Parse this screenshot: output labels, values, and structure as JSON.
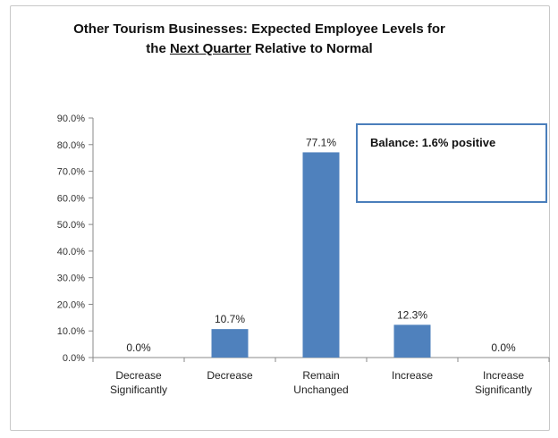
{
  "title": {
    "line1": "Other Tourism Businesses: Expected Employee Levels for",
    "line2_pre": "the ",
    "line2_underlined": "Next Quarter",
    "line2_post": " Relative to Normal"
  },
  "annotation": {
    "text": "Balance: 1.6% positive"
  },
  "colors": {
    "bar": "#4f81bd",
    "box_border": "#4a7ebb"
  },
  "chart_data": {
    "type": "bar",
    "categories": [
      [
        "Decrease",
        "Significantly"
      ],
      [
        "Decrease"
      ],
      [
        "Remain",
        "Unchanged"
      ],
      [
        "Increase"
      ],
      [
        "Increase",
        "Significantly"
      ]
    ],
    "values": [
      0.0,
      10.7,
      77.1,
      12.3,
      0.0
    ],
    "value_labels": [
      "0.0%",
      "10.7%",
      "77.1%",
      "12.3%",
      "0.0%"
    ],
    "y_ticks": [
      "0.0%",
      "10.0%",
      "20.0%",
      "30.0%",
      "40.0%",
      "50.0%",
      "60.0%",
      "70.0%",
      "80.0%",
      "90.0%"
    ],
    "ylim": [
      0,
      90
    ],
    "grid": false,
    "legend": "none"
  }
}
